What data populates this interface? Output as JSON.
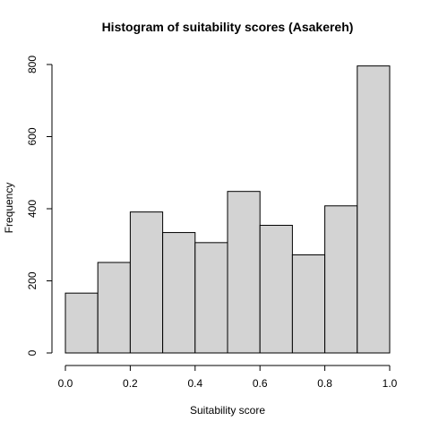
{
  "chart_data": {
    "type": "bar",
    "title": "Histogram of suitability scores (Asakereh)",
    "xlabel": "Suitability score",
    "ylabel": "Frequency",
    "bins": [
      {
        "from": 0.0,
        "to": 0.1,
        "value": 166
      },
      {
        "from": 0.1,
        "to": 0.2,
        "value": 251
      },
      {
        "from": 0.2,
        "to": 0.3,
        "value": 391
      },
      {
        "from": 0.3,
        "to": 0.4,
        "value": 334
      },
      {
        "from": 0.4,
        "to": 0.5,
        "value": 306
      },
      {
        "from": 0.5,
        "to": 0.6,
        "value": 448
      },
      {
        "from": 0.6,
        "to": 0.7,
        "value": 354
      },
      {
        "from": 0.7,
        "to": 0.8,
        "value": 272
      },
      {
        "from": 0.8,
        "to": 0.9,
        "value": 408
      },
      {
        "from": 0.9,
        "to": 1.0,
        "value": 796
      }
    ],
    "xlim": [
      0.0,
      1.0
    ],
    "ylim": [
      0,
      800
    ],
    "xticks": [
      "0.0",
      "0.2",
      "0.4",
      "0.6",
      "0.8",
      "1.0"
    ],
    "yticks": [
      "0",
      "200",
      "400",
      "600",
      "800"
    ],
    "grid": false,
    "legend": "none"
  }
}
